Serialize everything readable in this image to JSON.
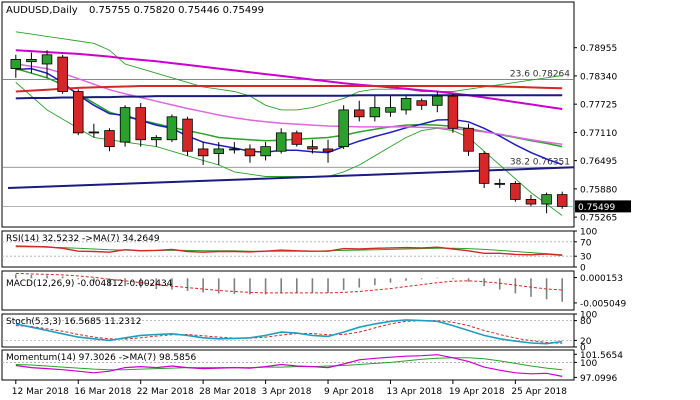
{
  "chart_data": {
    "type": "candlestick",
    "colors": {
      "bull": "#2ca02c",
      "bear": "#d62728",
      "border": "#000000",
      "grid": "#c8c8c8",
      "bg": "#ffffff",
      "text": "#000000",
      "price_tag_bg": "#000000",
      "price_tag_fg": "#ffffff"
    },
    "main": {
      "title": "AUDUSD,Daily",
      "ohlc_text": "0.75755 0.75820 0.75446 0.75499",
      "last_price_label": "0.75499",
      "last_price": 0.75499,
      "ylim": [
        0.7505,
        0.7995
      ],
      "yticks": [
        {
          "value": 0.78955,
          "label": "0.78955"
        },
        {
          "value": 0.7834,
          "label": "0.78340"
        },
        {
          "value": 0.77725,
          "label": "0.77725"
        },
        {
          "value": 0.7711,
          "label": "0.77110"
        },
        {
          "value": 0.76495,
          "label": "0.76495"
        },
        {
          "value": 0.7588,
          "label": "0.75880"
        },
        {
          "value": 0.75265,
          "label": "0.75265"
        }
      ],
      "xticks": [
        {
          "index": 0,
          "label": "12 Mar 2018"
        },
        {
          "index": 4,
          "label": "16 Mar 2018"
        },
        {
          "index": 8,
          "label": "22 Mar 2018"
        },
        {
          "index": 12,
          "label": "28 Mar 2018"
        },
        {
          "index": 16,
          "label": "3 Apr 2018"
        },
        {
          "index": 20,
          "label": "9 Apr 2018"
        },
        {
          "index": 24,
          "label": "13 Apr 2018"
        },
        {
          "index": 28,
          "label": "19 Apr 2018"
        },
        {
          "index": 32,
          "label": "25 Apr 2018"
        }
      ],
      "candles": [
        {
          "o": 0.785,
          "h": 0.788,
          "l": 0.783,
          "c": 0.787
        },
        {
          "o": 0.7865,
          "h": 0.7885,
          "l": 0.784,
          "c": 0.787
        },
        {
          "o": 0.786,
          "h": 0.789,
          "l": 0.783,
          "c": 0.788
        },
        {
          "o": 0.7875,
          "h": 0.788,
          "l": 0.7795,
          "c": 0.78
        },
        {
          "o": 0.78,
          "h": 0.7805,
          "l": 0.7705,
          "c": 0.771
        },
        {
          "o": 0.7712,
          "h": 0.773,
          "l": 0.77,
          "c": 0.771
        },
        {
          "o": 0.7715,
          "h": 0.772,
          "l": 0.767,
          "c": 0.768
        },
        {
          "o": 0.769,
          "h": 0.777,
          "l": 0.768,
          "c": 0.7765
        },
        {
          "o": 0.7765,
          "h": 0.7775,
          "l": 0.768,
          "c": 0.7695
        },
        {
          "o": 0.7695,
          "h": 0.7705,
          "l": 0.768,
          "c": 0.77
        },
        {
          "o": 0.7695,
          "h": 0.775,
          "l": 0.769,
          "c": 0.7745
        },
        {
          "o": 0.774,
          "h": 0.7745,
          "l": 0.766,
          "c": 0.767
        },
        {
          "o": 0.7675,
          "h": 0.769,
          "l": 0.764,
          "c": 0.766
        },
        {
          "o": 0.7665,
          "h": 0.769,
          "l": 0.764,
          "c": 0.7675
        },
        {
          "o": 0.7675,
          "h": 0.769,
          "l": 0.7665,
          "c": 0.7675
        },
        {
          "o": 0.7675,
          "h": 0.7685,
          "l": 0.7645,
          "c": 0.766
        },
        {
          "o": 0.766,
          "h": 0.769,
          "l": 0.765,
          "c": 0.768
        },
        {
          "o": 0.767,
          "h": 0.772,
          "l": 0.7665,
          "c": 0.771
        },
        {
          "o": 0.771,
          "h": 0.7715,
          "l": 0.768,
          "c": 0.7685
        },
        {
          "o": 0.768,
          "h": 0.7695,
          "l": 0.7665,
          "c": 0.7675
        },
        {
          "o": 0.7675,
          "h": 0.7695,
          "l": 0.7645,
          "c": 0.767
        },
        {
          "o": 0.768,
          "h": 0.777,
          "l": 0.7675,
          "c": 0.776
        },
        {
          "o": 0.776,
          "h": 0.778,
          "l": 0.7735,
          "c": 0.7745
        },
        {
          "o": 0.7745,
          "h": 0.779,
          "l": 0.7735,
          "c": 0.7765
        },
        {
          "o": 0.7755,
          "h": 0.779,
          "l": 0.7745,
          "c": 0.7765
        },
        {
          "o": 0.776,
          "h": 0.779,
          "l": 0.775,
          "c": 0.7785
        },
        {
          "o": 0.778,
          "h": 0.7785,
          "l": 0.776,
          "c": 0.777
        },
        {
          "o": 0.777,
          "h": 0.78,
          "l": 0.7755,
          "c": 0.779
        },
        {
          "o": 0.779,
          "h": 0.7795,
          "l": 0.771,
          "c": 0.772
        },
        {
          "o": 0.772,
          "h": 0.773,
          "l": 0.766,
          "c": 0.767
        },
        {
          "o": 0.7665,
          "h": 0.767,
          "l": 0.759,
          "c": 0.76
        },
        {
          "o": 0.76,
          "h": 0.761,
          "l": 0.759,
          "c": 0.76
        },
        {
          "o": 0.76,
          "h": 0.7605,
          "l": 0.756,
          "c": 0.7565
        },
        {
          "o": 0.7565,
          "h": 0.7575,
          "l": 0.755,
          "c": 0.7555
        },
        {
          "o": 0.7555,
          "h": 0.758,
          "l": 0.7535,
          "c": 0.75755
        },
        {
          "o": 0.75755,
          "h": 0.7582,
          "l": 0.75446,
          "c": 0.75499
        }
      ],
      "moving_averages": [
        {
          "color": "#2ca02c",
          "width": 1.5,
          "values": [
            0.785,
            0.784,
            0.783,
            0.7815,
            0.7795,
            0.7775,
            0.7755,
            0.7745,
            0.7738,
            0.773,
            0.7722,
            0.7715,
            0.7708,
            0.77,
            0.7697,
            0.7695,
            0.7693,
            0.7694,
            0.7696,
            0.7698,
            0.77,
            0.7705,
            0.7712,
            0.7718,
            0.7723,
            0.7727,
            0.7728,
            0.7727,
            0.7724,
            0.7719,
            0.7713,
            0.7706,
            0.77,
            0.7693,
            0.7687,
            0.768
          ]
        },
        {
          "color": "#1f1fbf",
          "width": 1.5,
          "values": [
            0.7848,
            0.785,
            0.784,
            0.782,
            0.7792,
            0.777,
            0.7752,
            0.7748,
            0.7737,
            0.7727,
            0.772,
            0.7703,
            0.769,
            0.7683,
            0.7677,
            0.767,
            0.7668,
            0.7672,
            0.7672,
            0.7669,
            0.7667,
            0.768,
            0.7692,
            0.7702,
            0.7711,
            0.7721,
            0.7729,
            0.7738,
            0.7739,
            0.7734,
            0.772,
            0.7703,
            0.7684,
            0.7667,
            0.7653,
            0.7641
          ]
        },
        {
          "color": "#e066e0",
          "width": 1.5,
          "values": [
            0.786,
            0.7855,
            0.785,
            0.784,
            0.7828,
            0.7816,
            0.7804,
            0.7795,
            0.7787,
            0.7779,
            0.7771,
            0.7763,
            0.7756,
            0.7749,
            0.7743,
            0.7738,
            0.7734,
            0.7731,
            0.7729,
            0.7727,
            0.7725,
            0.7724,
            0.7723,
            0.7723,
            0.7723,
            0.7723,
            0.7722,
            0.7721,
            0.7719,
            0.7716,
            0.7712,
            0.7707,
            0.7701,
            0.7695,
            0.769,
            0.7685
          ]
        },
        {
          "color": "#cc00cc",
          "width": 2,
          "values": [
            0.789,
            0.7888,
            0.7886,
            0.7884,
            0.7882,
            0.7879,
            0.7876,
            0.7872,
            0.7869,
            0.7866,
            0.7862,
            0.7858,
            0.7854,
            0.785,
            0.7846,
            0.7842,
            0.7838,
            0.7834,
            0.783,
            0.7826,
            0.7822,
            0.7818,
            0.7815,
            0.7812,
            0.7809,
            0.7806,
            0.7803,
            0.78,
            0.7796,
            0.7792,
            0.7787,
            0.7782,
            0.7777,
            0.7772,
            0.7767,
            0.7762
          ]
        },
        {
          "color": "#d62728",
          "width": 2,
          "values": [
            0.78,
            0.7802,
            0.7804,
            0.7806,
            0.7808,
            0.7809,
            0.781,
            0.7811,
            0.7812,
            0.7812,
            0.7812,
            0.7812,
            0.7812,
            0.7812,
            0.7812,
            0.7812,
            0.7812,
            0.7812,
            0.7812,
            0.7812,
            0.7812,
            0.7812,
            0.7812,
            0.7812,
            0.7812,
            0.7812,
            0.7812,
            0.7812,
            0.7812,
            0.7812,
            0.7812,
            0.7811,
            0.781,
            0.7809,
            0.7808,
            0.7807
          ]
        },
        {
          "color": "#1a1a80",
          "width": 2,
          "values": [
            0.7785,
            0.7786,
            0.7786,
            0.7787,
            0.7787,
            0.7788,
            0.7788,
            0.7789,
            0.7789,
            0.779,
            0.779,
            0.779,
            0.779,
            0.779,
            0.779,
            0.7791,
            0.7791,
            0.7791,
            0.7791,
            0.7791,
            0.7791,
            0.7791,
            0.7792,
            0.7792,
            0.7792,
            0.7792,
            0.7792,
            0.7792,
            0.7792,
            0.7792,
            0.7792,
            0.7792,
            0.7792,
            0.7792,
            0.7792,
            0.7792
          ]
        }
      ],
      "bollinger": {
        "color": "#2ca02c",
        "upper": [
          0.793,
          0.7925,
          0.792,
          0.7915,
          0.791,
          0.7905,
          0.789,
          0.786,
          0.785,
          0.784,
          0.783,
          0.782,
          0.781,
          0.7805,
          0.78,
          0.779,
          0.777,
          0.776,
          0.776,
          0.7765,
          0.7775,
          0.7785,
          0.78,
          0.7805,
          0.7805,
          0.7805,
          0.78,
          0.78,
          0.78,
          0.7805,
          0.781,
          0.7815,
          0.782,
          0.7825,
          0.783,
          0.7835
        ],
        "lower": [
          0.782,
          0.779,
          0.776,
          0.774,
          0.772,
          0.77,
          0.7695,
          0.769,
          0.7685,
          0.768,
          0.767,
          0.766,
          0.765,
          0.764,
          0.7625,
          0.762,
          0.7615,
          0.7615,
          0.7615,
          0.7615,
          0.7615,
          0.7625,
          0.764,
          0.766,
          0.768,
          0.77,
          0.7715,
          0.772,
          0.7715,
          0.77,
          0.767,
          0.764,
          0.761,
          0.758,
          0.7555,
          0.753
        ]
      },
      "trendlines": [
        {
          "color": "#1a1a80",
          "width": 2,
          "from": [
            0,
            0.759
          ],
          "to": [
            35.99,
            0.7635
          ]
        }
      ],
      "fib_levels": [
        {
          "label": "23.6 0.78264",
          "value": 0.78264
        },
        {
          "label": "38.2 0.76351",
          "value": 0.76351
        }
      ]
    },
    "rsi": {
      "label": "RSI(14) 32.5232 ->MA(7) 34.2649",
      "ylim": [
        0,
        100
      ],
      "yticks": [
        {
          "value": 100,
          "label": "100"
        },
        {
          "value": 70,
          "label": "70"
        },
        {
          "value": 30,
          "label": "30"
        },
        {
          "value": 0,
          "label": "0"
        }
      ],
      "rsi": [
        58,
        57,
        56,
        52,
        44,
        43,
        41,
        48,
        45,
        46,
        49,
        43,
        41,
        43,
        43,
        42,
        44,
        47,
        45,
        44,
        44,
        51,
        50,
        52,
        53,
        54,
        53,
        55,
        50,
        45,
        38,
        38,
        35,
        34,
        36,
        32.5
      ],
      "ma": [
        56,
        56,
        55,
        54,
        52,
        50,
        48,
        47,
        46,
        46,
        46,
        46,
        45,
        45,
        45,
        44,
        44,
        44,
        44,
        44,
        45,
        46,
        47,
        48,
        49,
        50,
        51,
        52,
        52,
        51,
        49,
        46,
        43,
        40,
        37,
        34.3
      ],
      "colors": {
        "rsi": "#d62728",
        "ma": "#2ca02c"
      }
    },
    "macd": {
      "label": "MACD(12,26,9) -0.004812 -0.002434",
      "ylim": [
        -0.0065,
        0.0015
      ],
      "yticks": [
        {
          "value": 0.000153,
          "label": "0.000153"
        },
        {
          "value": -0.005049,
          "label": "-0.005049"
        }
      ],
      "hist": [
        0.0008,
        0.0007,
        0.0006,
        0.0004,
        -0.0002,
        -0.0008,
        -0.0014,
        -0.0016,
        -0.0019,
        -0.0022,
        -0.0023,
        -0.0026,
        -0.0029,
        -0.0031,
        -0.0032,
        -0.0033,
        -0.0033,
        -0.0031,
        -0.003,
        -0.003,
        -0.003,
        -0.0024,
        -0.0019,
        -0.0014,
        -0.0009,
        -0.0005,
        -0.0002,
        0.0001,
        -0.0002,
        -0.0007,
        -0.0016,
        -0.0023,
        -0.0031,
        -0.0038,
        -0.0043,
        -0.0048
      ],
      "signal": [
        0.001,
        0.0009,
        0.0008,
        0.0007,
        0.0005,
        0.0002,
        -0.0002,
        -0.0005,
        -0.0009,
        -0.0013,
        -0.0016,
        -0.0019,
        -0.0022,
        -0.0025,
        -0.0027,
        -0.0029,
        -0.003,
        -0.003,
        -0.003,
        -0.003,
        -0.003,
        -0.0029,
        -0.0027,
        -0.0024,
        -0.0021,
        -0.0017,
        -0.0013,
        -0.0009,
        -0.0006,
        -0.0005,
        -0.0007,
        -0.001,
        -0.0014,
        -0.0018,
        -0.0022,
        -0.0024
      ],
      "colors": {
        "hist": "#808080",
        "signal": "#d62728"
      }
    },
    "stoch": {
      "label": "Stoch(5,3,3) 16.5685 11.2312",
      "ylim": [
        0,
        100
      ],
      "yticks": [
        {
          "value": 100,
          "label": "100"
        },
        {
          "value": 80,
          "label": "80"
        },
        {
          "value": 20,
          "label": "20"
        },
        {
          "value": 0,
          "label": "0"
        }
      ],
      "k": [
        70,
        60,
        50,
        40,
        30,
        25,
        20,
        28,
        35,
        38,
        40,
        35,
        28,
        25,
        26,
        28,
        35,
        45,
        42,
        35,
        32,
        45,
        60,
        70,
        78,
        82,
        80,
        78,
        65,
        50,
        35,
        25,
        18,
        12,
        10,
        16.6
      ],
      "d": [
        65,
        62,
        55,
        48,
        38,
        30,
        25,
        24,
        28,
        33,
        37,
        38,
        34,
        30,
        27,
        27,
        30,
        36,
        41,
        41,
        37,
        38,
        45,
        58,
        70,
        78,
        80,
        80,
        75,
        65,
        50,
        38,
        27,
        19,
        14,
        11.2
      ],
      "colors": {
        "k": "#1f9fbf",
        "d": "#d62728"
      }
    },
    "momentum": {
      "label": "Momentum(14) 97.3026 ->MA(7) 98.5856",
      "ylim": [
        96.6,
        102.4
      ],
      "yticks": [
        {
          "value": 101.5654,
          "label": "101.5654"
        },
        {
          "value": 100,
          "label": "100"
        },
        {
          "value": 97.0996,
          "label": "97.0996"
        }
      ],
      "mom": [
        99.4,
        99.0,
        98.8,
        98.6,
        98.3,
        98.0,
        98.3,
        99.0,
        99.2,
        99.0,
        99.3,
        99.0,
        98.8,
        98.9,
        99.0,
        98.9,
        99.2,
        99.6,
        99.3,
        99.2,
        99.0,
        99.7,
        100.5,
        100.8,
        101.0,
        101.2,
        101.3,
        101.5,
        100.9,
        100.2,
        99.1,
        98.5,
        98.0,
        97.8,
        97.9,
        97.3
      ],
      "ma": [
        99.6,
        99.5,
        99.3,
        99.1,
        98.9,
        98.7,
        98.6,
        98.6,
        98.7,
        98.8,
        98.9,
        99.0,
        99.0,
        99.0,
        99.0,
        99.0,
        99.1,
        99.1,
        99.2,
        99.2,
        99.3,
        99.4,
        99.6,
        99.8,
        100.0,
        100.3,
        100.6,
        100.8,
        100.9,
        100.9,
        100.7,
        100.3,
        99.8,
        99.3,
        98.9,
        98.6
      ],
      "colors": {
        "mom": "#cc00cc",
        "ma": "#2ca02c"
      }
    }
  }
}
